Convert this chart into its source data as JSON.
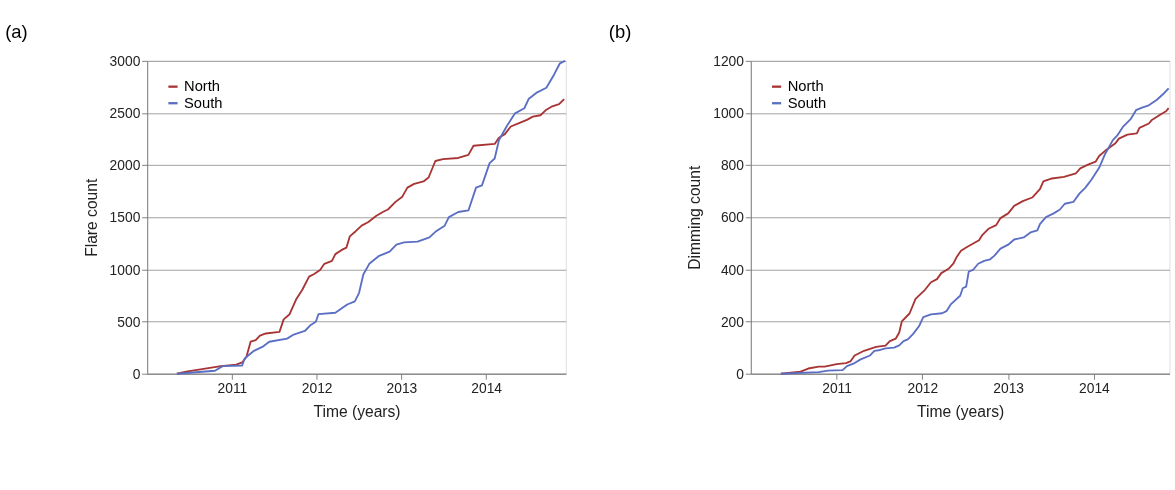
{
  "chart_data": [
    {
      "type": "line",
      "title": "(a)",
      "xlabel": "Time (years)",
      "ylabel": "Flare count",
      "xlim": [
        2010,
        2014.94
      ],
      "xticks": [
        2011,
        2012,
        2013,
        2014
      ],
      "ylim": [
        0,
        3000
      ],
      "yticks": [
        0,
        500,
        1000,
        1500,
        2000,
        2500,
        3000
      ],
      "grid": "y",
      "legend": "top left",
      "line_style": "solid",
      "marker": "none",
      "series": [
        {
          "name": "North",
          "color": "#a83434",
          "x": [
            2010.35,
            2010.46,
            2010.87,
            2011.05,
            2011.12,
            2011.17,
            2011.22,
            2011.28,
            2011.33,
            2011.4,
            2011.56,
            2011.61,
            2011.68,
            2011.76,
            2011.83,
            2011.91,
            2011.97,
            2012.04,
            2012.09,
            2012.18,
            2012.22,
            2012.29,
            2012.35,
            2012.39,
            2012.46,
            2012.53,
            2012.61,
            2012.7,
            2012.78,
            2012.84,
            2012.93,
            2013.01,
            2013.07,
            2013.15,
            2013.26,
            2013.32,
            2013.4,
            2013.49,
            2013.67,
            2013.79,
            2013.85,
            2014.1,
            2014.15,
            2014.22,
            2014.29,
            2014.38,
            2014.48,
            2014.55,
            2014.64,
            2014.71,
            2014.77,
            2014.86,
            2014.92
          ],
          "values": [
            0,
            20,
            73,
            88,
            108,
            161,
            307,
            322,
            366,
            386,
            401,
            521,
            571,
            717,
            805,
            931,
            957,
            995,
            1054,
            1083,
            1147,
            1185,
            1209,
            1317,
            1367,
            1420,
            1455,
            1513,
            1551,
            1575,
            1648,
            1698,
            1785,
            1821,
            1844,
            1882,
            2040,
            2058,
            2069,
            2099,
            2186,
            2204,
            2263,
            2298,
            2371,
            2400,
            2435,
            2465,
            2479,
            2532,
            2561,
            2585,
            2634
          ]
        },
        {
          "name": "South",
          "color": "#5a6ec4",
          "x": [
            2010.35,
            2010.8,
            2010.89,
            2011.12,
            2011.15,
            2011.26,
            2011.37,
            2011.44,
            2011.65,
            2011.72,
            2011.86,
            2011.93,
            2011.99,
            2012.02,
            2012.22,
            2012.36,
            2012.45,
            2012.5,
            2012.55,
            2012.62,
            2012.73,
            2012.86,
            2012.94,
            2013.03,
            2013.19,
            2013.33,
            2013.4,
            2013.51,
            2013.56,
            2013.67,
            2013.79,
            2013.88,
            2013.95,
            2014.04,
            2014.1,
            2014.15,
            2014.24,
            2014.34,
            2014.45,
            2014.5,
            2014.59,
            2014.71,
            2014.8,
            2014.87,
            2014.93
          ],
          "values": [
            0,
            29,
            73,
            79,
            146,
            220,
            263,
            307,
            337,
            372,
            410,
            468,
            498,
            571,
            585,
            664,
            694,
            776,
            951,
            1054,
            1127,
            1171,
            1238,
            1259,
            1267,
            1308,
            1361,
            1420,
            1502,
            1551,
            1566,
            1785,
            1806,
            2020,
            2064,
            2239,
            2371,
            2497,
            2546,
            2634,
            2693,
            2743,
            2868,
            2977,
            3000
          ]
        }
      ]
    },
    {
      "type": "line",
      "title": "(b)",
      "xlabel": "Time (years)",
      "ylabel": "Dimming count",
      "xlim": [
        2010,
        2014.88
      ],
      "xticks": [
        2011,
        2012,
        2013,
        2014
      ],
      "ylim": [
        0,
        1200
      ],
      "yticks": [
        0,
        200,
        400,
        600,
        800,
        1000,
        1200
      ],
      "grid": "y",
      "legend": "top left",
      "line_style": "solid",
      "marker": "none",
      "series": [
        {
          "name": "North",
          "color": "#a83434",
          "x": [
            2010.35,
            2010.58,
            2010.67,
            2010.79,
            2010.86,
            2011.0,
            2011.11,
            2011.16,
            2011.21,
            2011.32,
            2011.46,
            2011.57,
            2011.62,
            2011.69,
            2011.73,
            2011.76,
            2011.85,
            2011.92,
            2012.03,
            2012.1,
            2012.17,
            2012.22,
            2012.31,
            2012.36,
            2012.4,
            2012.45,
            2012.52,
            2012.66,
            2012.7,
            2012.77,
            2012.86,
            2012.91,
            2013.0,
            2013.07,
            2013.17,
            2013.28,
            2013.37,
            2013.41,
            2013.51,
            2013.65,
            2013.79,
            2013.84,
            2013.93,
            2014.02,
            2014.06,
            2014.13,
            2014.25,
            2014.29,
            2014.39,
            2014.5,
            2014.53,
            2014.64,
            2014.67,
            2014.78,
            2014.84,
            2014.87
          ],
          "values": [
            0,
            8,
            20,
            27,
            27,
            37,
            41,
            47,
            70,
            88,
            103,
            108,
            125,
            135,
            158,
            201,
            231,
            287,
            322,
            351,
            363,
            386,
            404,
            422,
            448,
            472,
            486,
            512,
            533,
            556,
            570,
            597,
            615,
            644,
            662,
            676,
            708,
            738,
            749,
            755,
            769,
            788,
            802,
            814,
            835,
            855,
            884,
            902,
            917,
            922,
            943,
            960,
            972,
            995,
            1007,
            1019
          ]
        },
        {
          "name": "South",
          "color": "#5a6ec4",
          "x": [
            2010.35,
            2010.79,
            2010.9,
            2011.07,
            2011.12,
            2011.21,
            2011.28,
            2011.39,
            2011.44,
            2011.49,
            2011.57,
            2011.67,
            2011.73,
            2011.78,
            2011.83,
            2011.89,
            2011.96,
            2012.01,
            2012.1,
            2012.23,
            2012.28,
            2012.33,
            2012.44,
            2012.47,
            2012.51,
            2012.54,
            2012.59,
            2012.65,
            2012.72,
            2012.79,
            2012.84,
            2012.91,
            2013.0,
            2013.07,
            2013.18,
            2013.26,
            2013.34,
            2013.37,
            2013.44,
            2013.53,
            2013.6,
            2013.66,
            2013.76,
            2013.83,
            2013.9,
            2013.97,
            2014.06,
            2014.13,
            2014.22,
            2014.27,
            2014.34,
            2014.43,
            2014.49,
            2014.56,
            2014.63,
            2014.73,
            2014.82,
            2014.87
          ],
          "values": [
            0,
            6,
            12,
            14,
            29,
            41,
            55,
            70,
            88,
            90,
            97,
            100,
            109,
            125,
            132,
            152,
            182,
            217,
            228,
            232,
            240,
            266,
            299,
            328,
            334,
            392,
            398,
            422,
            433,
            439,
            453,
            480,
            495,
            515,
            523,
            542,
            550,
            574,
            601,
            615,
            629,
            652,
            659,
            691,
            714,
            744,
            790,
            843,
            896,
            913,
            948,
            978,
            1011,
            1021,
            1028,
            1050,
            1077,
            1095
          ]
        }
      ]
    }
  ]
}
